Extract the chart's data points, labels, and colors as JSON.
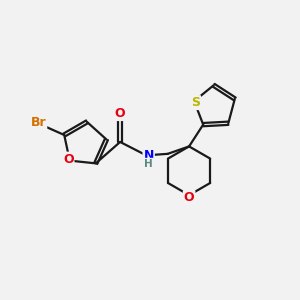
{
  "bg_color": "#f2f2f2",
  "bond_color": "#1a1a1a",
  "atom_colors": {
    "O": "#e8000d",
    "N": "#0000ff",
    "S": "#b8b800",
    "Br": "#d47000"
  },
  "lw": 1.6,
  "fs": 9.0,
  "off": 0.055
}
